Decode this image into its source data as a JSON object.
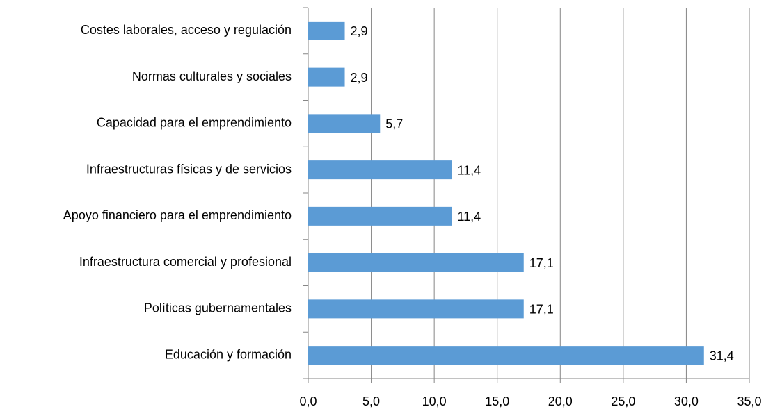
{
  "chart_data": {
    "type": "bar",
    "orientation": "horizontal",
    "categories": [
      "Costes laborales, acceso y regulación",
      "Normas culturales y sociales",
      "Capacidad para el emprendimiento",
      "Infraestructuras físicas y de servicios",
      "Apoyo financiero para el emprendimiento",
      "Infraestructura comercial y profesional",
      "Políticas gubernamentales",
      "Educación y formación"
    ],
    "values": [
      2.9,
      2.9,
      5.7,
      11.4,
      11.4,
      17.1,
      17.1,
      31.4
    ],
    "value_labels": [
      "2,9",
      "2,9",
      "5,7",
      "11,4",
      "11,4",
      "17,1",
      "17,1",
      "31,4"
    ],
    "color": "#5b9bd5",
    "xlim": [
      0,
      35
    ],
    "xticks": [
      {
        "value": 0,
        "label": "0,0"
      },
      {
        "value": 5,
        "label": "5,0"
      },
      {
        "value": 10,
        "label": "10,0"
      },
      {
        "value": 15,
        "label": "15,0"
      },
      {
        "value": 20,
        "label": "20,0"
      },
      {
        "value": 25,
        "label": "25,0"
      },
      {
        "value": 30,
        "label": "30,0"
      },
      {
        "value": 35,
        "label": "35,0"
      }
    ],
    "grid": true
  }
}
